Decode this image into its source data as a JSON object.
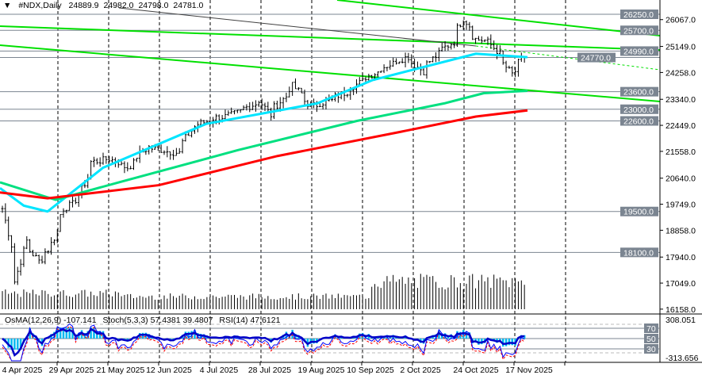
{
  "header": {
    "menu_icon": "triangle-down-icon",
    "symbol": "#NDX,Daily",
    "open": "24889.9",
    "high": "24982.0",
    "low": "24798.0",
    "close": "24781.0"
  },
  "indicators": {
    "osma": "OsMA(12,26,9) -107.141",
    "stoch": "Stoch(5,3,3) 57.4381 39.4807",
    "rsi": "RSI(14) 47.6121"
  },
  "colors": {
    "bars": "#000000",
    "ma_fast": "#00e5ff",
    "ma_mid": "#00e080",
    "ma_slow": "#ff0000",
    "trendline": "#00e000",
    "level_tag": "#7b8591",
    "osma_hist": "#00b8f0",
    "stoch_main": "#0000ff",
    "stoch_signal": "#ff0000",
    "rsi": "#0000c8"
  },
  "chart_data": {
    "type": "candlestick",
    "price_axis_labels": [
      "26067.0",
      "25149.0",
      "24258.0",
      "23340.0",
      "22449.0",
      "21558.0",
      "20640.0",
      "19749.0",
      "18858.0",
      "17940.0",
      "17049.0",
      "16158.0"
    ],
    "price_axis_values": [
      26067,
      25149,
      24258,
      23340,
      22449,
      21558,
      20640,
      19749,
      18858,
      17940,
      17049,
      16158
    ],
    "level_tags": [
      "26250.0",
      "25700.0",
      "24990.0",
      "24770.0",
      "23600.0",
      "23000.0",
      "22600.0",
      "19500.0",
      "18100.0"
    ],
    "level_values": [
      26250,
      25700,
      24990,
      24770,
      23600,
      23000,
      22600,
      19500,
      18100
    ],
    "date_labels": [
      "4 Apr 2025",
      "29 Apr 2025",
      "21 May 2025",
      "12 Jun 2025",
      "4 Jul 2025",
      "28 Jul 2025",
      "19 Aug 2025",
      "10 Sep 2025",
      "2 Oct 2025",
      "24 Oct 2025",
      "17 Nov 2025"
    ],
    "close_path": [
      [
        "2025-04-01",
        19600
      ],
      [
        "2025-04-07",
        17100
      ],
      [
        "2025-04-11",
        18500
      ],
      [
        "2025-04-17",
        17800
      ],
      [
        "2025-04-22",
        18200
      ],
      [
        "2025-04-29",
        19600
      ],
      [
        "2025-05-05",
        19900
      ],
      [
        "2025-05-12",
        21200
      ],
      [
        "2025-05-20",
        21300
      ],
      [
        "2025-05-28",
        21000
      ],
      [
        "2025-06-06",
        21700
      ],
      [
        "2025-06-13",
        21600
      ],
      [
        "2025-06-20",
        21500
      ],
      [
        "2025-06-27",
        22400
      ],
      [
        "2025-07-07",
        22700
      ],
      [
        "2025-07-15",
        22800
      ],
      [
        "2025-07-28",
        23300
      ],
      [
        "2025-08-01",
        22800
      ],
      [
        "2025-08-12",
        23800
      ],
      [
        "2025-08-20",
        23100
      ],
      [
        "2025-08-29",
        23300
      ],
      [
        "2025-09-05",
        23600
      ],
      [
        "2025-09-15",
        24100
      ],
      [
        "2025-09-24",
        24500
      ],
      [
        "2025-10-03",
        24800
      ],
      [
        "2025-10-10",
        24300
      ],
      [
        "2025-10-17",
        24900
      ],
      [
        "2025-10-24",
        25300
      ],
      [
        "2025-10-29",
        26100
      ],
      [
        "2025-11-04",
        25400
      ],
      [
        "2025-11-10",
        25300
      ],
      [
        "2025-11-14",
        24900
      ],
      [
        "2025-11-20",
        24200
      ],
      [
        "2025-11-26",
        24781
      ]
    ],
    "ma_fast": [
      [
        0,
        20300
      ],
      [
        30,
        19700
      ],
      [
        60,
        19500
      ],
      [
        130,
        21000
      ],
      [
        260,
        22500
      ],
      [
        400,
        23200
      ],
      [
        470,
        24000
      ],
      [
        600,
        24900
      ],
      [
        665,
        24780
      ]
    ],
    "ma_mid": [
      [
        0,
        20500
      ],
      [
        70,
        19900
      ],
      [
        150,
        20500
      ],
      [
        300,
        21600
      ],
      [
        450,
        22600
      ],
      [
        560,
        23200
      ],
      [
        610,
        23550
      ],
      [
        665,
        23630
      ]
    ],
    "ma_slow": [
      [
        0,
        20150
      ],
      [
        60,
        19950
      ],
      [
        200,
        20400
      ],
      [
        350,
        21400
      ],
      [
        500,
        22200
      ],
      [
        600,
        22750
      ],
      [
        665,
        22960
      ]
    ],
    "indicator_axis_labels": [
      "308.051",
      "70",
      "50",
      "30",
      "-313.656"
    ]
  }
}
